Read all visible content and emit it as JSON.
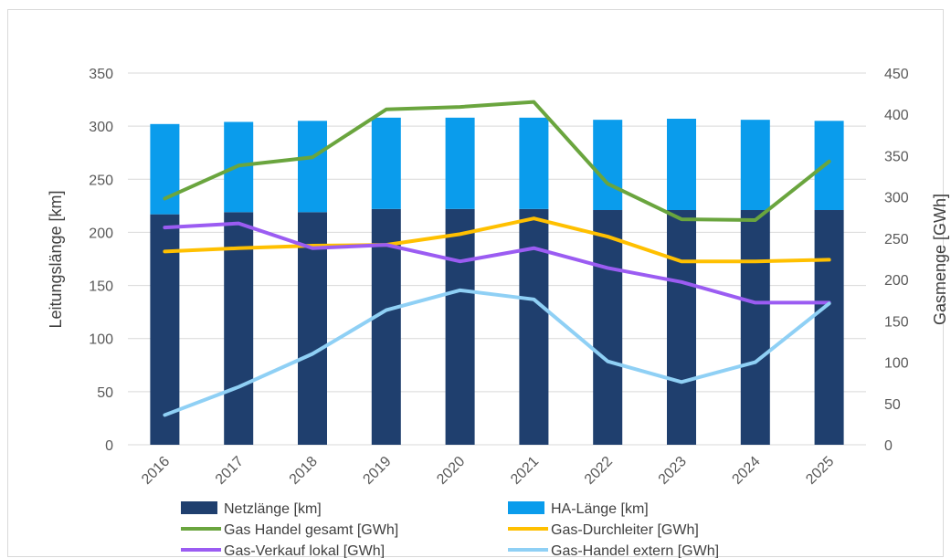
{
  "chart_data": {
    "type": "bar",
    "categories": [
      "2016",
      "2017",
      "2018",
      "2019",
      "2020",
      "2021",
      "2022",
      "2023",
      "2024",
      "2025"
    ],
    "ylabel": "Leitungslänge [km]",
    "y2label": "Gasmenge [GWh]",
    "ylim": [
      0,
      350
    ],
    "y2lim": [
      0,
      450
    ],
    "yticks": [
      "0",
      "50",
      "100",
      "150",
      "200",
      "250",
      "300",
      "350"
    ],
    "y2ticks": [
      "0",
      "50",
      "100",
      "150",
      "200",
      "250",
      "300",
      "350",
      "400",
      "450"
    ],
    "stacked": true,
    "grid": true,
    "legend_position": "bottom",
    "bar_series": [
      {
        "name": "Netzlänge [km]",
        "color": "#1f3f6e",
        "values": [
          217,
          219,
          219,
          222,
          222,
          222,
          221,
          221,
          221,
          221
        ]
      },
      {
        "name": "HA-Länge [km]",
        "color": "#0a9cec",
        "values": [
          85,
          85,
          86,
          86,
          86,
          86,
          85,
          86,
          85,
          84
        ]
      }
    ],
    "line_series": [
      {
        "name": "Gas Handel gesamt [GWh]",
        "color": "#6aa53e",
        "axis": "right",
        "values": [
          298,
          338,
          348,
          406,
          409,
          415,
          316,
          273,
          272,
          343
        ]
      },
      {
        "name": "Gas-Durchleiter [GWh]",
        "color": "#ffc000",
        "axis": "right",
        "values": [
          234,
          238,
          241,
          242,
          255,
          274,
          252,
          222,
          222,
          224
        ]
      },
      {
        "name": "Gas-Verkauf lokal [GWh]",
        "color": "#9b5cf2",
        "axis": "right",
        "values": [
          263,
          268,
          238,
          242,
          222,
          238,
          214,
          197,
          172,
          172
        ]
      },
      {
        "name": "Gas-Handel extern [GWh]",
        "color": "#8fd0f5",
        "axis": "right",
        "values": [
          36,
          70,
          110,
          163,
          187,
          176,
          101,
          76,
          100,
          171
        ]
      }
    ]
  }
}
